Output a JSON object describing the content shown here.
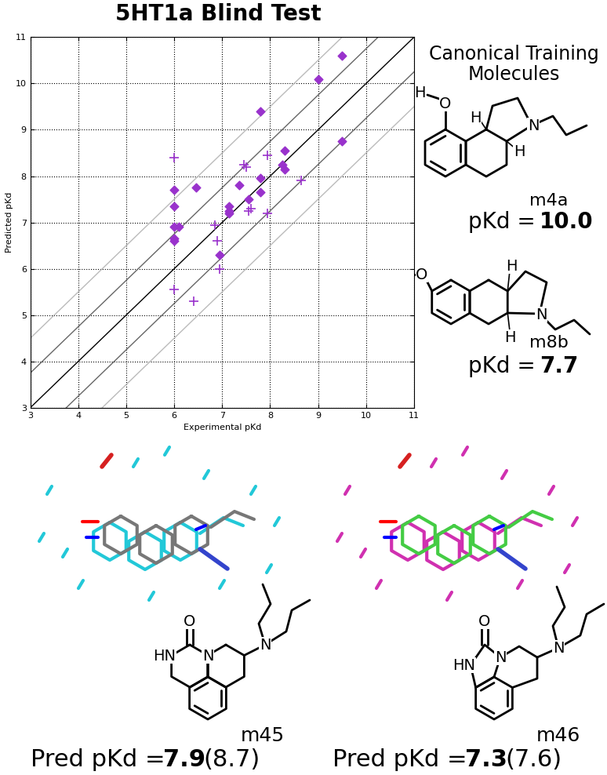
{
  "title": "5HT1a Blind Test",
  "chart_data": {
    "type": "scatter",
    "xlabel": "Experimental pKd",
    "ylabel": "Predicted pKd",
    "xlim": [
      3,
      11
    ],
    "ylim": [
      3,
      11
    ],
    "xticks": [
      3,
      4,
      5,
      6,
      7,
      8,
      9,
      10,
      11
    ],
    "yticks": [
      3,
      4,
      5,
      6,
      7,
      8,
      9,
      10,
      11
    ],
    "grid": true,
    "reference_lines": [
      {
        "offset": 0,
        "color": "#000000"
      },
      {
        "offset": 0.75,
        "color": "#666666"
      },
      {
        "offset": -0.75,
        "color": "#666666"
      },
      {
        "offset": 1.5,
        "color": "#bbbbbb"
      },
      {
        "offset": -1.5,
        "color": "#bbbbbb"
      }
    ],
    "series": [
      {
        "marker": "diamond",
        "color": "#9932cc",
        "x": [
          6.0,
          6.0,
          6.0,
          6.0,
          6.0,
          6.1,
          6.45,
          6.95,
          7.15,
          7.15,
          7.15,
          7.35,
          7.55,
          7.8,
          7.8,
          7.8,
          8.25,
          8.3,
          8.3,
          9.0,
          9.5,
          9.5
        ],
        "values": [
          7.7,
          7.35,
          6.9,
          6.65,
          6.6,
          6.9,
          7.75,
          6.3,
          7.35,
          7.25,
          7.2,
          7.8,
          7.5,
          7.95,
          7.65,
          9.4,
          8.25,
          8.55,
          8.15,
          10.1,
          10.6,
          8.75
        ]
      },
      {
        "marker": "plus",
        "color": "#9932cc",
        "x": [
          6.0,
          6.0,
          6.4,
          6.85,
          6.9,
          6.95,
          7.45,
          7.5,
          7.55,
          7.6,
          7.95,
          7.95,
          8.65
        ],
        "values": [
          8.4,
          5.55,
          5.3,
          6.95,
          6.6,
          6.0,
          8.25,
          8.2,
          7.25,
          7.3,
          8.45,
          7.2,
          7.9
        ]
      }
    ]
  },
  "training_panel": {
    "heading": "Canonical Training\nMolecules",
    "molecules": [
      {
        "id": "m4a",
        "label": "pKd =",
        "value": 10.0,
        "atom_labels": [
          "H",
          "O",
          "H",
          "N",
          "H"
        ]
      },
      {
        "id": "m8b",
        "label": "pKd =",
        "value": 7.7,
        "atom_labels": [
          "O",
          "H",
          "N",
          "H"
        ]
      }
    ]
  },
  "test_molecules": [
    {
      "id": "m45",
      "label": "Pred pKd =",
      "predicted": 7.9,
      "experimental": "(8.7)",
      "atom_labels": [
        "O",
        "HN",
        "N",
        "N"
      ]
    },
    {
      "id": "m46",
      "label": "Pred pKd =",
      "predicted": 7.3,
      "experimental": "(7.6)",
      "atom_labels": [
        "O",
        "HN",
        "N",
        "N"
      ]
    }
  ]
}
